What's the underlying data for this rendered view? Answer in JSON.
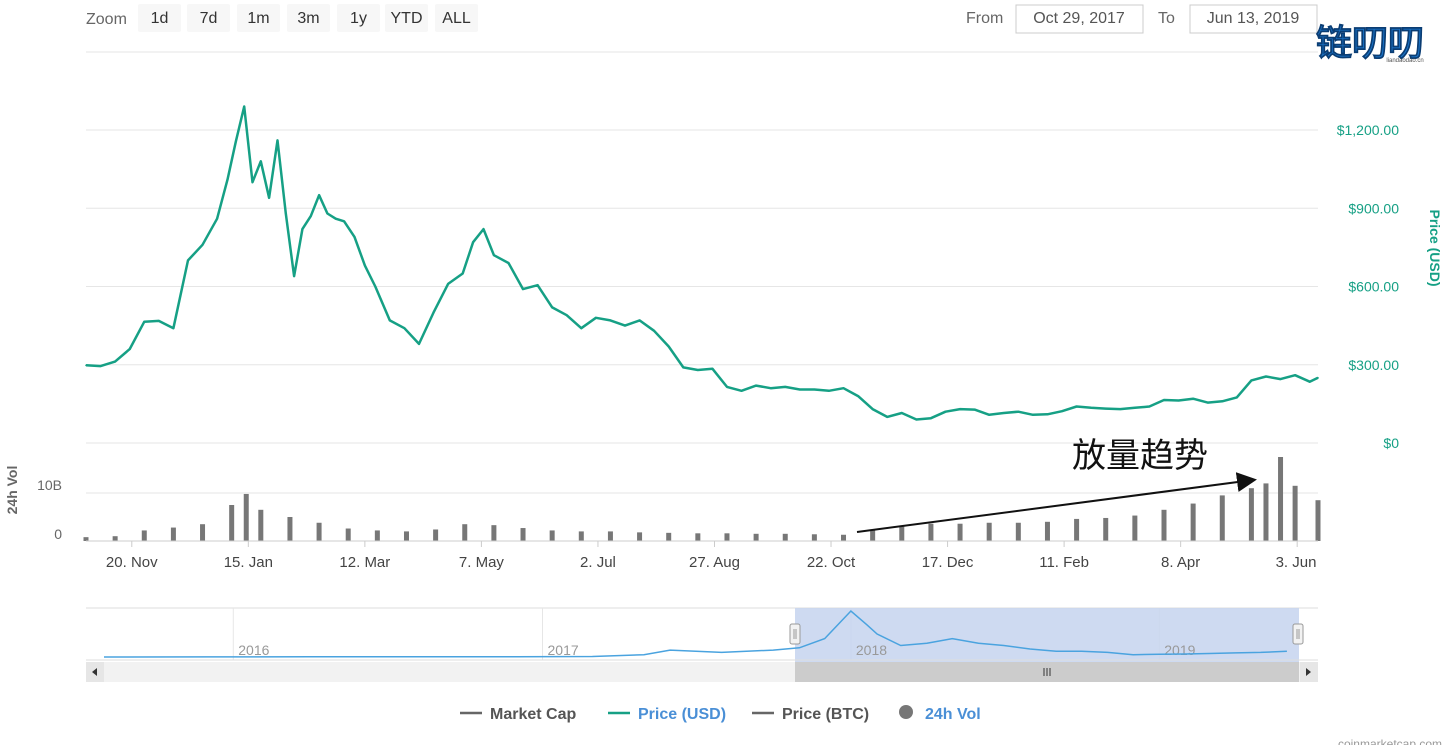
{
  "zoom": {
    "label": "Zoom",
    "buttons": [
      "1d",
      "7d",
      "1m",
      "3m",
      "1y",
      "YTD",
      "ALL"
    ]
  },
  "range": {
    "from_label": "From",
    "from_value": "Oct 29, 2017",
    "to_label": "To",
    "to_value": "Jun 13, 2019"
  },
  "watermark": {
    "text": "链叨叨",
    "subtext": "liandaodao.cn"
  },
  "annotation": {
    "text": "放量趋势"
  },
  "legend": [
    {
      "label": "Market Cap",
      "color": "#666666",
      "symbol": "line"
    },
    {
      "label": "Price (USD)",
      "color": "#16a085",
      "symbol": "line"
    },
    {
      "label": "Price (BTC)",
      "color": "#666666",
      "symbol": "line"
    },
    {
      "label": "24h Vol",
      "color": "#777777",
      "symbol": "circle"
    }
  ],
  "credits": "coinmarketcap.com",
  "colors": {
    "price": "#16a085",
    "volume": "#777777",
    "navigator": "#4aa3df",
    "navigator_mask": "#c6d3ee"
  },
  "chart_data": [
    {
      "type": "line",
      "series": [
        {
          "name": "Price (USD)",
          "x": [
            "2017-10-29",
            "2017-11-05",
            "2017-11-12",
            "2017-11-19",
            "2017-11-26",
            "2017-12-03",
            "2017-12-10",
            "2017-12-17",
            "2017-12-24",
            "2017-12-31",
            "2018-01-05",
            "2018-01-09",
            "2018-01-13",
            "2018-01-17",
            "2018-01-21",
            "2018-01-25",
            "2018-01-29",
            "2018-02-02",
            "2018-02-06",
            "2018-02-10",
            "2018-02-14",
            "2018-02-18",
            "2018-02-22",
            "2018-02-26",
            "2018-03-02",
            "2018-03-07",
            "2018-03-12",
            "2018-03-17",
            "2018-03-24",
            "2018-03-31",
            "2018-04-07",
            "2018-04-14",
            "2018-04-21",
            "2018-04-28",
            "2018-05-03",
            "2018-05-08",
            "2018-05-13",
            "2018-05-20",
            "2018-05-27",
            "2018-06-03",
            "2018-06-10",
            "2018-06-17",
            "2018-06-24",
            "2018-07-01",
            "2018-07-08",
            "2018-07-15",
            "2018-07-22",
            "2018-07-29",
            "2018-08-05",
            "2018-08-12",
            "2018-08-19",
            "2018-08-26",
            "2018-09-02",
            "2018-09-09",
            "2018-09-16",
            "2018-09-23",
            "2018-09-30",
            "2018-10-07",
            "2018-10-14",
            "2018-10-21",
            "2018-10-28",
            "2018-11-04",
            "2018-11-11",
            "2018-11-18",
            "2018-11-25",
            "2018-12-02",
            "2018-12-09",
            "2018-12-16",
            "2018-12-23",
            "2018-12-30",
            "2019-01-06",
            "2019-01-13",
            "2019-01-20",
            "2019-01-27",
            "2019-02-03",
            "2019-02-10",
            "2019-02-17",
            "2019-02-24",
            "2019-03-03",
            "2019-03-10",
            "2019-03-17",
            "2019-03-24",
            "2019-03-31",
            "2019-04-07",
            "2019-04-14",
            "2019-04-21",
            "2019-04-28",
            "2019-05-05",
            "2019-05-12",
            "2019-05-19",
            "2019-05-26",
            "2019-06-02",
            "2019-06-09",
            "2019-06-13"
          ],
          "y": [
            298,
            295,
            312,
            360,
            465,
            468,
            440,
            700,
            760,
            860,
            1010,
            1155,
            1290,
            1000,
            1080,
            940,
            1160,
            880,
            640,
            820,
            870,
            950,
            880,
            860,
            850,
            790,
            680,
            600,
            470,
            440,
            380,
            500,
            610,
            650,
            770,
            820,
            720,
            690,
            590,
            605,
            520,
            490,
            440,
            480,
            470,
            450,
            470,
            430,
            370,
            290,
            280,
            285,
            215,
            200,
            220,
            210,
            215,
            205,
            205,
            200,
            210,
            180,
            130,
            100,
            115,
            90,
            95,
            120,
            130,
            128,
            108,
            115,
            120,
            108,
            110,
            122,
            140,
            135,
            132,
            130,
            135,
            140,
            165,
            163,
            170,
            155,
            160,
            175,
            240,
            255,
            245,
            260,
            235,
            250
          ]
        },
        {
          "name": "24h Vol",
          "type": "bar",
          "x": [
            "2017-10-29",
            "2017-11-12",
            "2017-11-26",
            "2017-12-10",
            "2017-12-24",
            "2018-01-07",
            "2018-01-14",
            "2018-01-21",
            "2018-02-04",
            "2018-02-18",
            "2018-03-04",
            "2018-03-18",
            "2018-04-01",
            "2018-04-15",
            "2018-04-29",
            "2018-05-13",
            "2018-05-27",
            "2018-06-10",
            "2018-06-24",
            "2018-07-08",
            "2018-07-22",
            "2018-08-05",
            "2018-08-19",
            "2018-09-02",
            "2018-09-16",
            "2018-09-30",
            "2018-10-14",
            "2018-10-28",
            "2018-11-11",
            "2018-11-25",
            "2018-12-09",
            "2018-12-23",
            "2019-01-06",
            "2019-01-20",
            "2019-02-03",
            "2019-02-17",
            "2019-03-03",
            "2019-03-17",
            "2019-03-31",
            "2019-04-14",
            "2019-04-28",
            "2019-05-12",
            "2019-05-19",
            "2019-05-26",
            "2019-06-02",
            "2019-06-13"
          ],
          "y": [
            0.8,
            1.0,
            2.2,
            2.8,
            3.5,
            7.5,
            9.8,
            6.5,
            5.0,
            3.8,
            2.6,
            2.2,
            2.0,
            2.4,
            3.5,
            3.3,
            2.7,
            2.2,
            2.0,
            2.0,
            1.8,
            1.7,
            1.6,
            1.6,
            1.5,
            1.5,
            1.4,
            1.3,
            2.4,
            3.0,
            3.6,
            3.6,
            3.8,
            3.8,
            4.0,
            4.6,
            4.8,
            5.3,
            6.5,
            7.8,
            9.5,
            11.0,
            12.0,
            17.5,
            11.5,
            8.5
          ]
        }
      ],
      "y_axis_price": {
        "label": "Price (USD)",
        "ticks": [
          "$0",
          "$300.00",
          "$600.00",
          "$900.00",
          "$1,200.00"
        ],
        "ylim": [
          0,
          1350
        ]
      },
      "y_axis_volume": {
        "label": "24h Vol",
        "ticks": [
          "0",
          "10B"
        ],
        "ylim": [
          0,
          20
        ]
      },
      "x_ticks": [
        "20. Nov",
        "15. Jan",
        "12. Mar",
        "7. May",
        "2. Jul",
        "27. Aug",
        "22. Oct",
        "17. Dec",
        "11. Feb",
        "8. Apr",
        "3. Jun"
      ],
      "grid": true
    },
    {
      "type": "area",
      "series": [
        {
          "name": "Market Cap",
          "x": [
            "2015-08",
            "2015-12",
            "2016-04",
            "2016-08",
            "2016-12",
            "2017-03",
            "2017-05",
            "2017-06",
            "2017-08",
            "2017-10",
            "2017-11",
            "2017-12",
            "2018-01",
            "2018-01-20",
            "2018-02",
            "2018-03",
            "2018-04",
            "2018-05",
            "2018-06",
            "2018-07",
            "2018-08",
            "2018-09",
            "2018-10",
            "2018-11",
            "2018-12",
            "2019-01",
            "2019-02",
            "2019-03",
            "2019-04",
            "2019-05",
            "2019-06"
          ],
          "y": [
            0.0,
            0.05,
            0.1,
            0.1,
            0.1,
            0.2,
            1.0,
            3.0,
            2.0,
            3.0,
            4.0,
            8.0,
            20.0,
            14.0,
            10.0,
            5.0,
            6.0,
            8.0,
            6.0,
            5.0,
            3.5,
            2.5,
            2.5,
            2.0,
            1.0,
            1.2,
            1.3,
            1.5,
            1.8,
            2.0,
            2.5
          ]
        }
      ],
      "x_ticks": [
        "2016",
        "2017",
        "2018",
        "2019"
      ]
    }
  ]
}
